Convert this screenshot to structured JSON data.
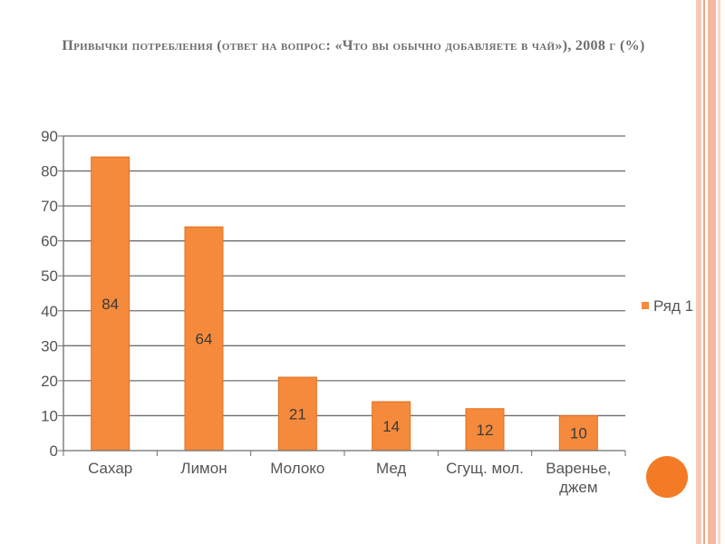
{
  "slide": {
    "title": "Привычки потребления (ответ на вопрос: «Что вы обычно добавляете в чай»), 2008 г (%)"
  },
  "chart_data": {
    "type": "bar",
    "title": "Привычки потребления (ответ на вопрос: «Что вы обычно добавляете в чай»), 2008 г (%)",
    "categories": [
      "Сахар",
      "Лимон",
      "Молоко",
      "Мед",
      "Сгущ. мол.",
      "Варенье, джем"
    ],
    "series": [
      {
        "name": "Ряд 1",
        "values": [
          84,
          64,
          21,
          14,
          12,
          10
        ],
        "color": "#f68a3c"
      }
    ],
    "ylim": [
      0,
      90
    ],
    "yticks": [
      0,
      10,
      20,
      30,
      40,
      50,
      60,
      70,
      80,
      90
    ],
    "grid": true,
    "legend": "right",
    "data_labels": "inside-center"
  }
}
